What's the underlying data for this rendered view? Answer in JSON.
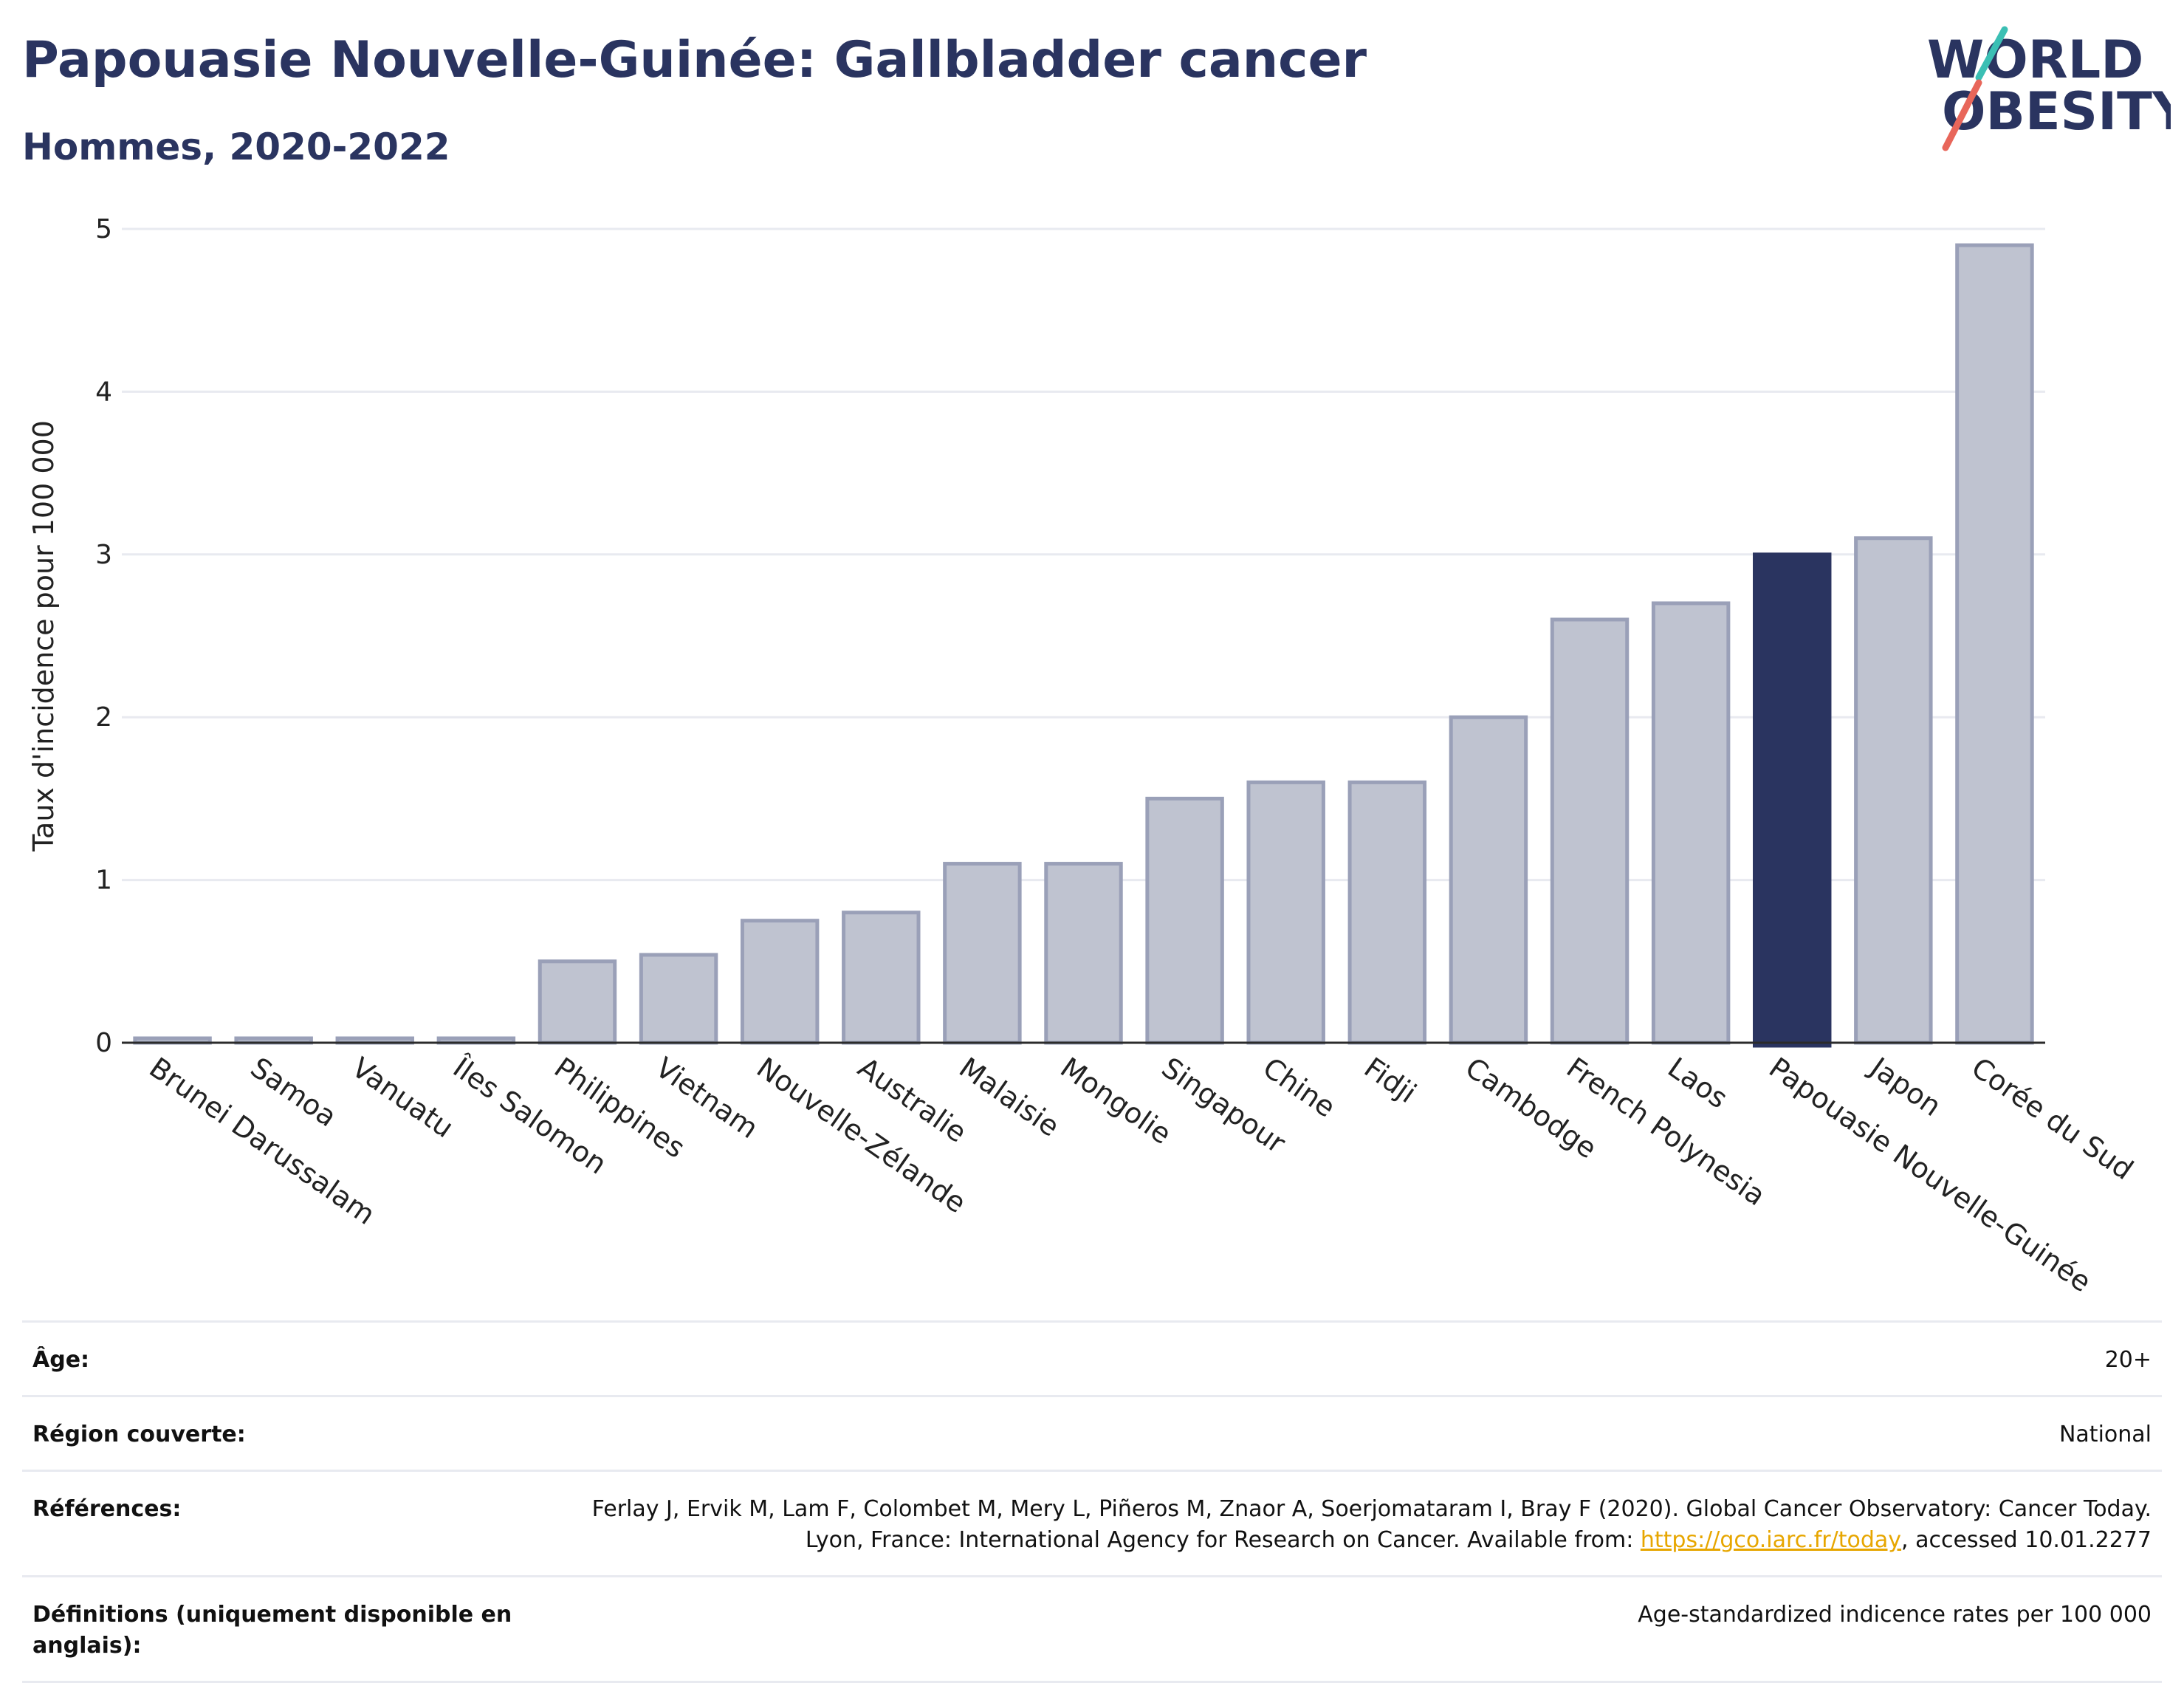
{
  "header": {
    "title": "Papouasie Nouvelle-Guinée: Gallbladder cancer",
    "subtitle": "Hommes, 2020-2022"
  },
  "logo": {
    "line1": "WORLD",
    "line2": "OBESITY",
    "icon": "world-obesity-logo"
  },
  "colors": {
    "highlight": "#2a3460",
    "bar": "#bfc3d0",
    "bar_edge": "#9aa0b8",
    "grid": "#e8eaf0",
    "link": "#e7a600"
  },
  "chart_data": {
    "type": "bar",
    "ylabel": "Taux d'incidence pour 100 000",
    "xlabel": "",
    "ylim": [
      0,
      5
    ],
    "yticks": [
      0,
      1,
      2,
      3,
      4,
      5
    ],
    "categories": [
      "Brunei Darussalam",
      "Samoa",
      "Vanuatu",
      "Îles Salomon",
      "Philippines",
      "Vietnam",
      "Nouvelle-Zélande",
      "Australie",
      "Malaisie",
      "Mongolie",
      "Singapour",
      "Chine",
      "Fidji",
      "Cambodge",
      "French Polynesia",
      "Laos",
      "Papouasie Nouvelle-Guinée",
      "Japon",
      "Corée du Sud"
    ],
    "values": [
      0,
      0,
      0,
      0,
      0.5,
      0.54,
      0.75,
      0.8,
      1.1,
      1.1,
      1.5,
      1.6,
      1.6,
      2.0,
      2.6,
      2.7,
      3.0,
      3.1,
      4.9
    ],
    "highlight": "Papouasie Nouvelle-Guinée",
    "grid": true
  },
  "info": {
    "age_label": "Âge:",
    "age_value": "20+",
    "region_label": "Région couverte:",
    "region_value": "National",
    "references_label": "Références:",
    "references_text": "Ferlay J, Ervik M, Lam F, Colombet M, Mery L, Piñeros M, Znaor A, Soerjomataram I, Bray F (2020). Global Cancer Observatory: Cancer Today. Lyon, France: International Agency for Research on Cancer. Available from: ",
    "references_link": "https://gco.iarc.fr/today",
    "references_suffix": ", accessed 10.01.2277",
    "definitions_label": "Définitions (uniquement disponible en anglais):",
    "definitions_value": "Age-standardized indicence rates per 100 000"
  }
}
